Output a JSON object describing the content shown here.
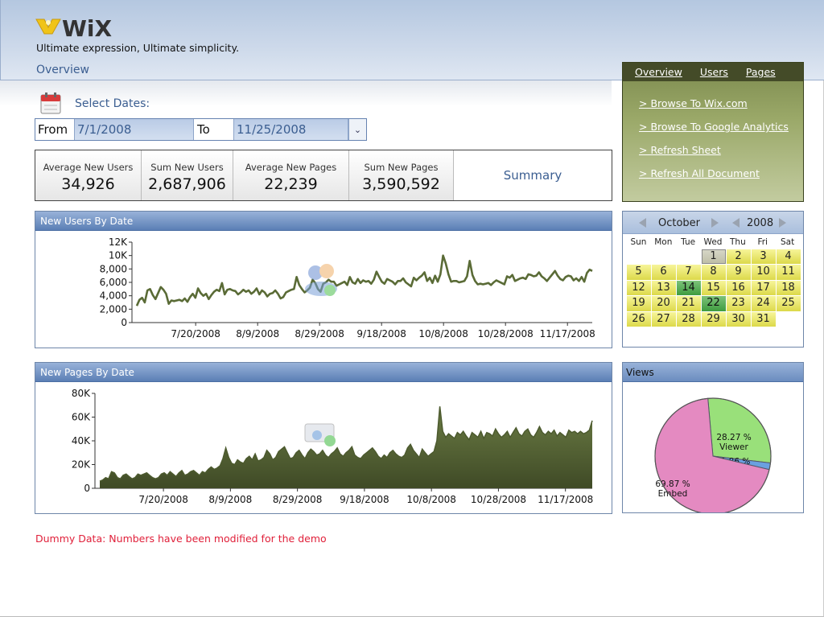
{
  "header": {
    "logo_text": "WiX",
    "tagline": "Ultimate expression, Ultimate simplicity.",
    "page_title": "Overview"
  },
  "dates": {
    "select_label": "Select Dates:",
    "from_label": "From",
    "from_value": "7/1/2008",
    "to_label": "To",
    "to_value": "11/25/2008"
  },
  "stats": [
    {
      "label": "Average New Users",
      "value": "34,926"
    },
    {
      "label": "Sum New Users",
      "value": "2,687,906"
    },
    {
      "label": "Average New Pages",
      "value": "22,239"
    },
    {
      "label": "Sum New Pages",
      "value": "3,590,592"
    }
  ],
  "summary_label": "Summary",
  "nav": {
    "tabs": [
      "Overview",
      "Users",
      "Pages"
    ],
    "links": [
      "> Browse To Wix.com",
      "> Browse To Google Analytics",
      "> Refresh Sheet",
      "> Refresh All Document"
    ]
  },
  "calendar": {
    "month": "October",
    "year": "2008",
    "weekdays": [
      "Sun",
      "Mon",
      "Tue",
      "Wed",
      "Thu",
      "Fri",
      "Sat"
    ],
    "today": 1,
    "selected": [
      14,
      22
    ],
    "days_in_month": 31,
    "first_weekday": 3,
    "colors": {
      "day": "#e8e56a",
      "selected": "#4fa84f"
    }
  },
  "views_title": "Views",
  "dummy_note": "Dummy Data: Numbers have been modified for the demo",
  "chart_data": [
    {
      "type": "line",
      "title": "New Users By Date",
      "ylim": [
        0,
        12000
      ],
      "yticks": [
        "0",
        "2,000",
        "4,000",
        "6,000",
        "8,000",
        "10K",
        "12K"
      ],
      "xticks": [
        "7/20/2008",
        "8/9/2008",
        "8/29/2008",
        "9/18/2008",
        "10/8/2008",
        "10/28/2008",
        "11/17/2008"
      ],
      "x_start": "7/1/2008",
      "x_end": "11/25/2008",
      "color": "#5a6b36",
      "values": [
        2500,
        3400,
        3700,
        3000,
        4800,
        5000,
        4100,
        3500,
        4400,
        5300,
        4900,
        4300,
        2800,
        3300,
        3200,
        3300,
        3400,
        3200,
        3600,
        3100,
        3800,
        4300,
        3700,
        5100,
        4400,
        4000,
        4300,
        3500,
        4100,
        4600,
        4900,
        4700,
        5900,
        4200,
        4900,
        5000,
        4800,
        4700,
        4200,
        4500,
        4900,
        4600,
        4800,
        4300,
        4600,
        5100,
        4200,
        4800,
        4500,
        3900,
        4300,
        4400,
        4800,
        4300,
        3600,
        3800,
        4500,
        4700,
        4900,
        5000,
        6800,
        5600,
        5000,
        4500,
        4800,
        5200,
        6400,
        5900,
        5000,
        4600,
        5800,
        6000,
        6400,
        6100,
        6100,
        5500,
        5700,
        5900,
        6100,
        5600,
        6800,
        6000,
        5800,
        6500,
        5900,
        6300,
        6100,
        6200,
        5800,
        6400,
        7600,
        6800,
        6100,
        5800,
        6500,
        6300,
        6100,
        5700,
        6200,
        6200,
        6600,
        6000,
        5700,
        5400,
        6700,
        6300,
        6700,
        7000,
        7500,
        6200,
        6700,
        5900,
        7000,
        6100,
        7200,
        10000,
        8800,
        7200,
        6100,
        6200,
        6200,
        6000,
        6100,
        6200,
        6900,
        9200,
        7100,
        6200,
        5700,
        5800,
        5700,
        5800,
        5900,
        5600,
        6000,
        6300,
        6100,
        5900,
        5700,
        6900,
        6700,
        7100,
        6200,
        6400,
        6600,
        6700,
        6500,
        7200,
        7100,
        6900,
        7000,
        7500,
        6900,
        6600,
        6200,
        6700,
        7200,
        7700,
        7000,
        6500,
        6300,
        6800,
        7000,
        6900,
        6300,
        6600,
        6200,
        6800,
        6100,
        7400,
        7900,
        7700
      ]
    },
    {
      "type": "area",
      "title": "New Pages By Date",
      "ylim": [
        0,
        80000
      ],
      "yticks": [
        "0",
        "20K",
        "40K",
        "60K",
        "80K"
      ],
      "xticks": [
        "7/20/2008",
        "8/9/2008",
        "8/29/2008",
        "9/18/2008",
        "10/8/2008",
        "10/28/2008",
        "11/17/2008"
      ],
      "x_start": "7/1/2008",
      "x_end": "11/25/2008",
      "color": "#5a6b36",
      "values": [
        6000,
        7000,
        9000,
        8000,
        14000,
        13000,
        9000,
        8000,
        11000,
        12000,
        10000,
        8000,
        9000,
        12000,
        11000,
        12000,
        13000,
        11000,
        9000,
        8000,
        9000,
        12000,
        13000,
        11000,
        14000,
        12000,
        10000,
        13000,
        15000,
        11000,
        12000,
        14000,
        15000,
        13000,
        11000,
        14000,
        13000,
        16000,
        18000,
        16000,
        17000,
        19000,
        25000,
        34000,
        26000,
        21000,
        20000,
        24000,
        22000,
        21000,
        25000,
        27000,
        24000,
        29000,
        23000,
        24000,
        26000,
        32000,
        29000,
        24000,
        26000,
        31000,
        33000,
        35000,
        30000,
        25000,
        26000,
        30000,
        32000,
        28000,
        25000,
        30000,
        33000,
        31000,
        28000,
        29000,
        32000,
        28000,
        26000,
        29000,
        31000,
        34000,
        29000,
        27000,
        30000,
        32000,
        35000,
        28000,
        26000,
        25000,
        28000,
        30000,
        32000,
        34000,
        31000,
        27000,
        25000,
        28000,
        26000,
        30000,
        32000,
        29000,
        27000,
        26000,
        28000,
        34000,
        37000,
        32000,
        29000,
        26000,
        33000,
        30000,
        27000,
        29000,
        31000,
        40000,
        69000,
        48000,
        43000,
        46000,
        44000,
        42000,
        47000,
        45000,
        48000,
        44000,
        41000,
        47000,
        45000,
        43000,
        48000,
        42000,
        47000,
        46000,
        44000,
        50000,
        46000,
        43000,
        45000,
        48000,
        43000,
        47000,
        51000,
        46000,
        44000,
        48000,
        50000,
        45000,
        43000,
        47000,
        52000,
        47000,
        45000,
        48000,
        46000,
        49000,
        44000,
        47000,
        45000,
        43000,
        49000,
        47000,
        48000,
        46000,
        48000,
        46000,
        47000,
        49000,
        57000
      ]
    },
    {
      "type": "pie",
      "title": "Views",
      "slices": [
        {
          "label": "Viewer",
          "pct_label": "28.27 %",
          "value": 28.27,
          "color": "#99e07a"
        },
        {
          "label": "Site",
          "pct_label": "1.86 %",
          "value": 1.86,
          "color": "#6aa0e0"
        },
        {
          "label": "Embed",
          "pct_label": "69.87 %",
          "value": 69.87,
          "color": "#e48ac1"
        }
      ]
    }
  ]
}
